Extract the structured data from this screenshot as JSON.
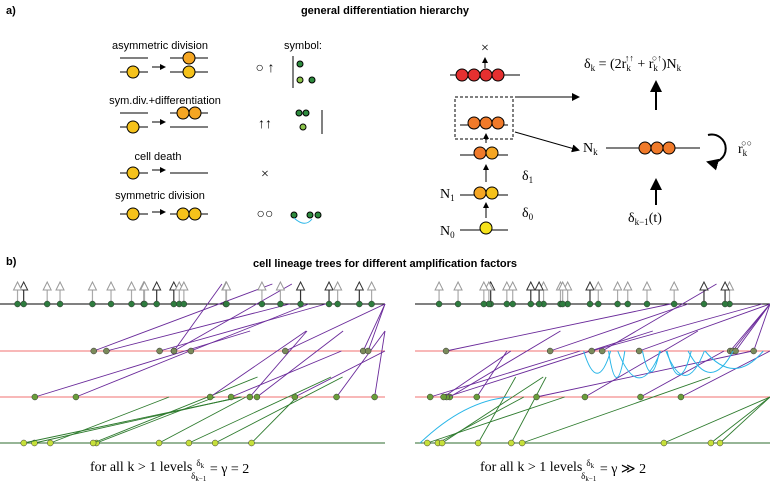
{
  "panel_a": {
    "label": "a)",
    "title": "general differentiation hierarchy",
    "events": [
      {
        "name": "asymmetric division",
        "symbol": "○ ↑"
      },
      {
        "name": "sym.div.+differentiation",
        "symbol": "↑↑"
      },
      {
        "name": "cell death",
        "symbol": "×"
      },
      {
        "name": "symmetric division",
        "symbol": "○○"
      }
    ],
    "symbol_header": "symbol:",
    "hierarchy": {
      "death": "×",
      "delta1": [
        "δ",
        "1"
      ],
      "delta0": [
        "δ",
        "0"
      ],
      "n1": [
        "N",
        "1"
      ],
      "n0": [
        "N",
        "0"
      ]
    },
    "equation": [
      "δ",
      "k",
      " = (2r",
      "k",
      "↑↑",
      " + r",
      "k",
      "○↑",
      ")N",
      "k"
    ],
    "nk": [
      "N",
      "k"
    ],
    "rate": [
      "r",
      "k",
      "○○"
    ],
    "input": [
      "δ",
      "k−1",
      "(t)"
    ]
  },
  "panel_b": {
    "label": "b)",
    "title": "cell lineage trees for different amplification factors",
    "captions": [
      {
        "prefix": "for all k > 1 levels",
        "num": [
          "δ",
          "k"
        ],
        "den": [
          "δ",
          "k−1"
        ],
        "rest": " = γ = 2"
      },
      {
        "prefix": "for all k > 1 levels",
        "num": [
          "δ",
          "k"
        ],
        "den": [
          "δ",
          "k−1"
        ],
        "rest": " = γ ≫ 2"
      }
    ]
  }
}
